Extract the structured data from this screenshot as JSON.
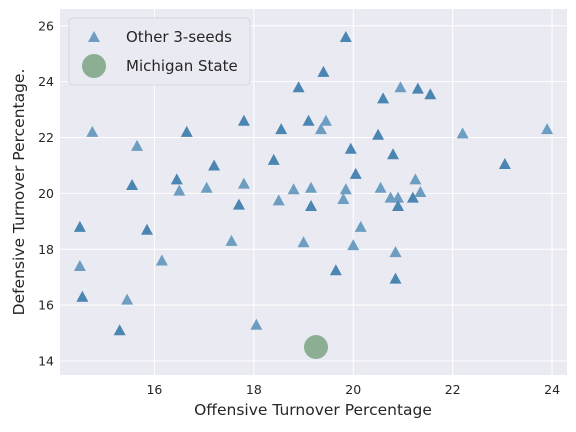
{
  "chart_data": {
    "type": "scatter",
    "xlabel": "Offensive Turnover Percentage",
    "ylabel": "Defensive Turnover Percentage.",
    "xlim": [
      14.1,
      24.3
    ],
    "ylim": [
      13.5,
      26.6
    ],
    "xticks": [
      16,
      18,
      20,
      22,
      24
    ],
    "yticks": [
      14,
      16,
      18,
      20,
      22,
      24,
      26
    ],
    "grid": true,
    "background": "#eaeaf2",
    "legend_position": "upper-left",
    "series": [
      {
        "name": "Other 3-seeds",
        "marker": "triangle",
        "colors": [
          "#4a86b1",
          "#6d9ec1"
        ],
        "points": [
          [
            14.5,
            18.8
          ],
          [
            14.5,
            17.4
          ],
          [
            14.55,
            16.3
          ],
          [
            14.75,
            22.2
          ],
          [
            15.3,
            15.1
          ],
          [
            15.45,
            16.2
          ],
          [
            15.55,
            20.3
          ],
          [
            15.65,
            21.7
          ],
          [
            15.85,
            18.7
          ],
          [
            16.15,
            17.6
          ],
          [
            16.45,
            20.5
          ],
          [
            16.5,
            20.1
          ],
          [
            16.65,
            22.2
          ],
          [
            17.05,
            20.2
          ],
          [
            17.2,
            21.0
          ],
          [
            17.55,
            18.3
          ],
          [
            17.7,
            19.6
          ],
          [
            17.8,
            20.35
          ],
          [
            17.8,
            22.6
          ],
          [
            18.05,
            15.3
          ],
          [
            18.4,
            21.2
          ],
          [
            18.5,
            19.75
          ],
          [
            18.55,
            22.3
          ],
          [
            18.8,
            20.15
          ],
          [
            18.9,
            23.8
          ],
          [
            19.0,
            18.25
          ],
          [
            19.1,
            22.6
          ],
          [
            19.15,
            20.2
          ],
          [
            19.15,
            19.55
          ],
          [
            19.35,
            22.3
          ],
          [
            19.4,
            24.35
          ],
          [
            19.45,
            22.6
          ],
          [
            19.65,
            17.25
          ],
          [
            19.8,
            19.8
          ],
          [
            19.85,
            25.6
          ],
          [
            19.85,
            20.15
          ],
          [
            19.95,
            21.6
          ],
          [
            20.0,
            18.15
          ],
          [
            20.05,
            20.7
          ],
          [
            20.15,
            18.8
          ],
          [
            20.5,
            22.1
          ],
          [
            20.55,
            20.2
          ],
          [
            20.6,
            23.4
          ],
          [
            20.75,
            19.85
          ],
          [
            20.8,
            21.4
          ],
          [
            20.85,
            17.9
          ],
          [
            20.85,
            16.95
          ],
          [
            20.9,
            19.85
          ],
          [
            20.9,
            19.55
          ],
          [
            20.95,
            23.8
          ],
          [
            21.2,
            19.85
          ],
          [
            21.25,
            20.5
          ],
          [
            21.3,
            23.75
          ],
          [
            21.35,
            20.05
          ],
          [
            21.55,
            23.55
          ],
          [
            22.2,
            22.15
          ],
          [
            23.05,
            21.05
          ],
          [
            23.9,
            22.3
          ]
        ]
      },
      {
        "name": "Michigan State",
        "marker": "circle",
        "colors": [
          "#8cae92"
        ],
        "points": [
          [
            19.25,
            14.5
          ]
        ]
      }
    ]
  }
}
